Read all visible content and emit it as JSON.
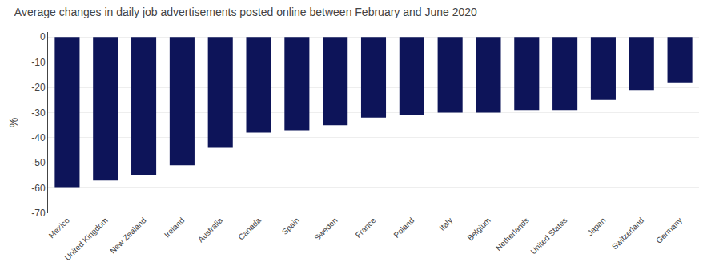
{
  "chart_data": {
    "type": "bar",
    "title": "Average changes in daily job advertisements posted online between February and June 2020",
    "ylabel": "%",
    "categories": [
      "Mexico",
      "United Kingdom",
      "New Zealand",
      "Ireland",
      "Australia",
      "Canada",
      "Spain",
      "Sweden",
      "France",
      "Poland",
      "Italy",
      "Belgium",
      "Netherlands",
      "United States",
      "Japan",
      "Switzerland",
      "Germany"
    ],
    "values": [
      -60,
      -57,
      -55,
      -51,
      -44,
      -38,
      -37,
      -35,
      -32,
      -31,
      -30,
      -30,
      -29,
      -29,
      -25,
      -21,
      -18
    ],
    "color": "#0d1459",
    "ylim": [
      -70,
      2
    ],
    "yticks": [
      0,
      -10,
      -20,
      -30,
      -40,
      -50,
      -60,
      -70
    ],
    "grid": true
  }
}
